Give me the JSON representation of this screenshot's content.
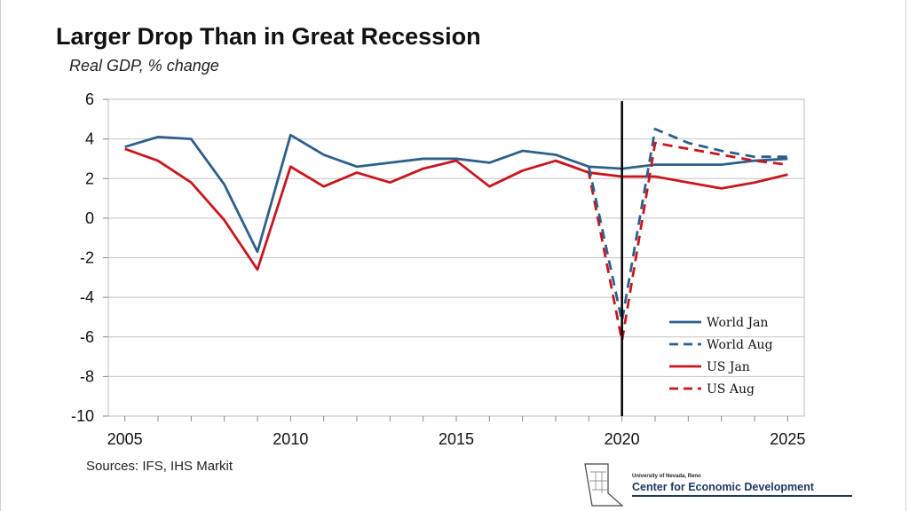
{
  "chart_data": {
    "type": "line",
    "title": "Larger Drop Than in Great Recession",
    "subtitle": "Real GDP, % change",
    "xlabel": "",
    "ylabel": "",
    "xlim": [
      2004.5,
      2025.5
    ],
    "ylim": [
      -10,
      6
    ],
    "x_ticks": [
      "2005",
      "2010",
      "2015",
      "2020",
      "2025"
    ],
    "x_tick_values": [
      2005,
      2010,
      2015,
      2020,
      2025
    ],
    "y_ticks": [
      "6",
      "4",
      "2",
      "0",
      "-2",
      "-4",
      "-6",
      "-8",
      "-10"
    ],
    "y_tick_values": [
      6,
      4,
      2,
      0,
      -2,
      -4,
      -6,
      -8,
      -10
    ],
    "grid": "horizontal",
    "legend_position": "bottom-right",
    "vertical_marker_x": 2020,
    "series": [
      {
        "name": "World Jan",
        "color": "#2e5f8a",
        "dash": false,
        "x": [
          2005,
          2006,
          2007,
          2008,
          2009,
          2010,
          2011,
          2012,
          2013,
          2014,
          2015,
          2016,
          2017,
          2018,
          2019,
          2020,
          2021,
          2022,
          2023,
          2024,
          2025
        ],
        "values": [
          3.6,
          4.1,
          4.0,
          1.7,
          -1.7,
          4.2,
          3.2,
          2.6,
          2.8,
          3.0,
          3.0,
          2.8,
          3.4,
          3.2,
          2.6,
          2.5,
          2.7,
          2.7,
          2.7,
          2.9,
          3.0
        ]
      },
      {
        "name": "World Aug",
        "color": "#2e5f8a",
        "dash": true,
        "x": [
          2019,
          2020,
          2021,
          2022,
          2023,
          2024,
          2025
        ],
        "values": [
          2.6,
          -5.2,
          4.5,
          3.8,
          3.4,
          3.1,
          3.1
        ]
      },
      {
        "name": "US Jan",
        "color": "#c8161d",
        "dash": false,
        "x": [
          2005,
          2006,
          2007,
          2008,
          2009,
          2010,
          2011,
          2012,
          2013,
          2014,
          2015,
          2016,
          2017,
          2018,
          2019,
          2020,
          2021,
          2022,
          2023,
          2024,
          2025
        ],
        "values": [
          3.5,
          2.9,
          1.8,
          -0.1,
          -2.6,
          2.6,
          1.6,
          2.3,
          1.8,
          2.5,
          2.9,
          1.6,
          2.4,
          2.9,
          2.3,
          2.1,
          2.1,
          1.8,
          1.5,
          1.8,
          2.2
        ]
      },
      {
        "name": "US Aug",
        "color": "#c8161d",
        "dash": true,
        "x": [
          2018,
          2019,
          2020,
          2021,
          2022,
          2023,
          2024,
          2025
        ],
        "values": [
          2.9,
          2.3,
          -6.2,
          3.8,
          3.5,
          3.2,
          2.9,
          2.7
        ]
      }
    ]
  },
  "footer": {
    "sources": "Sources: IFS, IHS Markit",
    "logo_university": "University of Nevada, Reno",
    "logo_center": "Center for Economic Development"
  }
}
